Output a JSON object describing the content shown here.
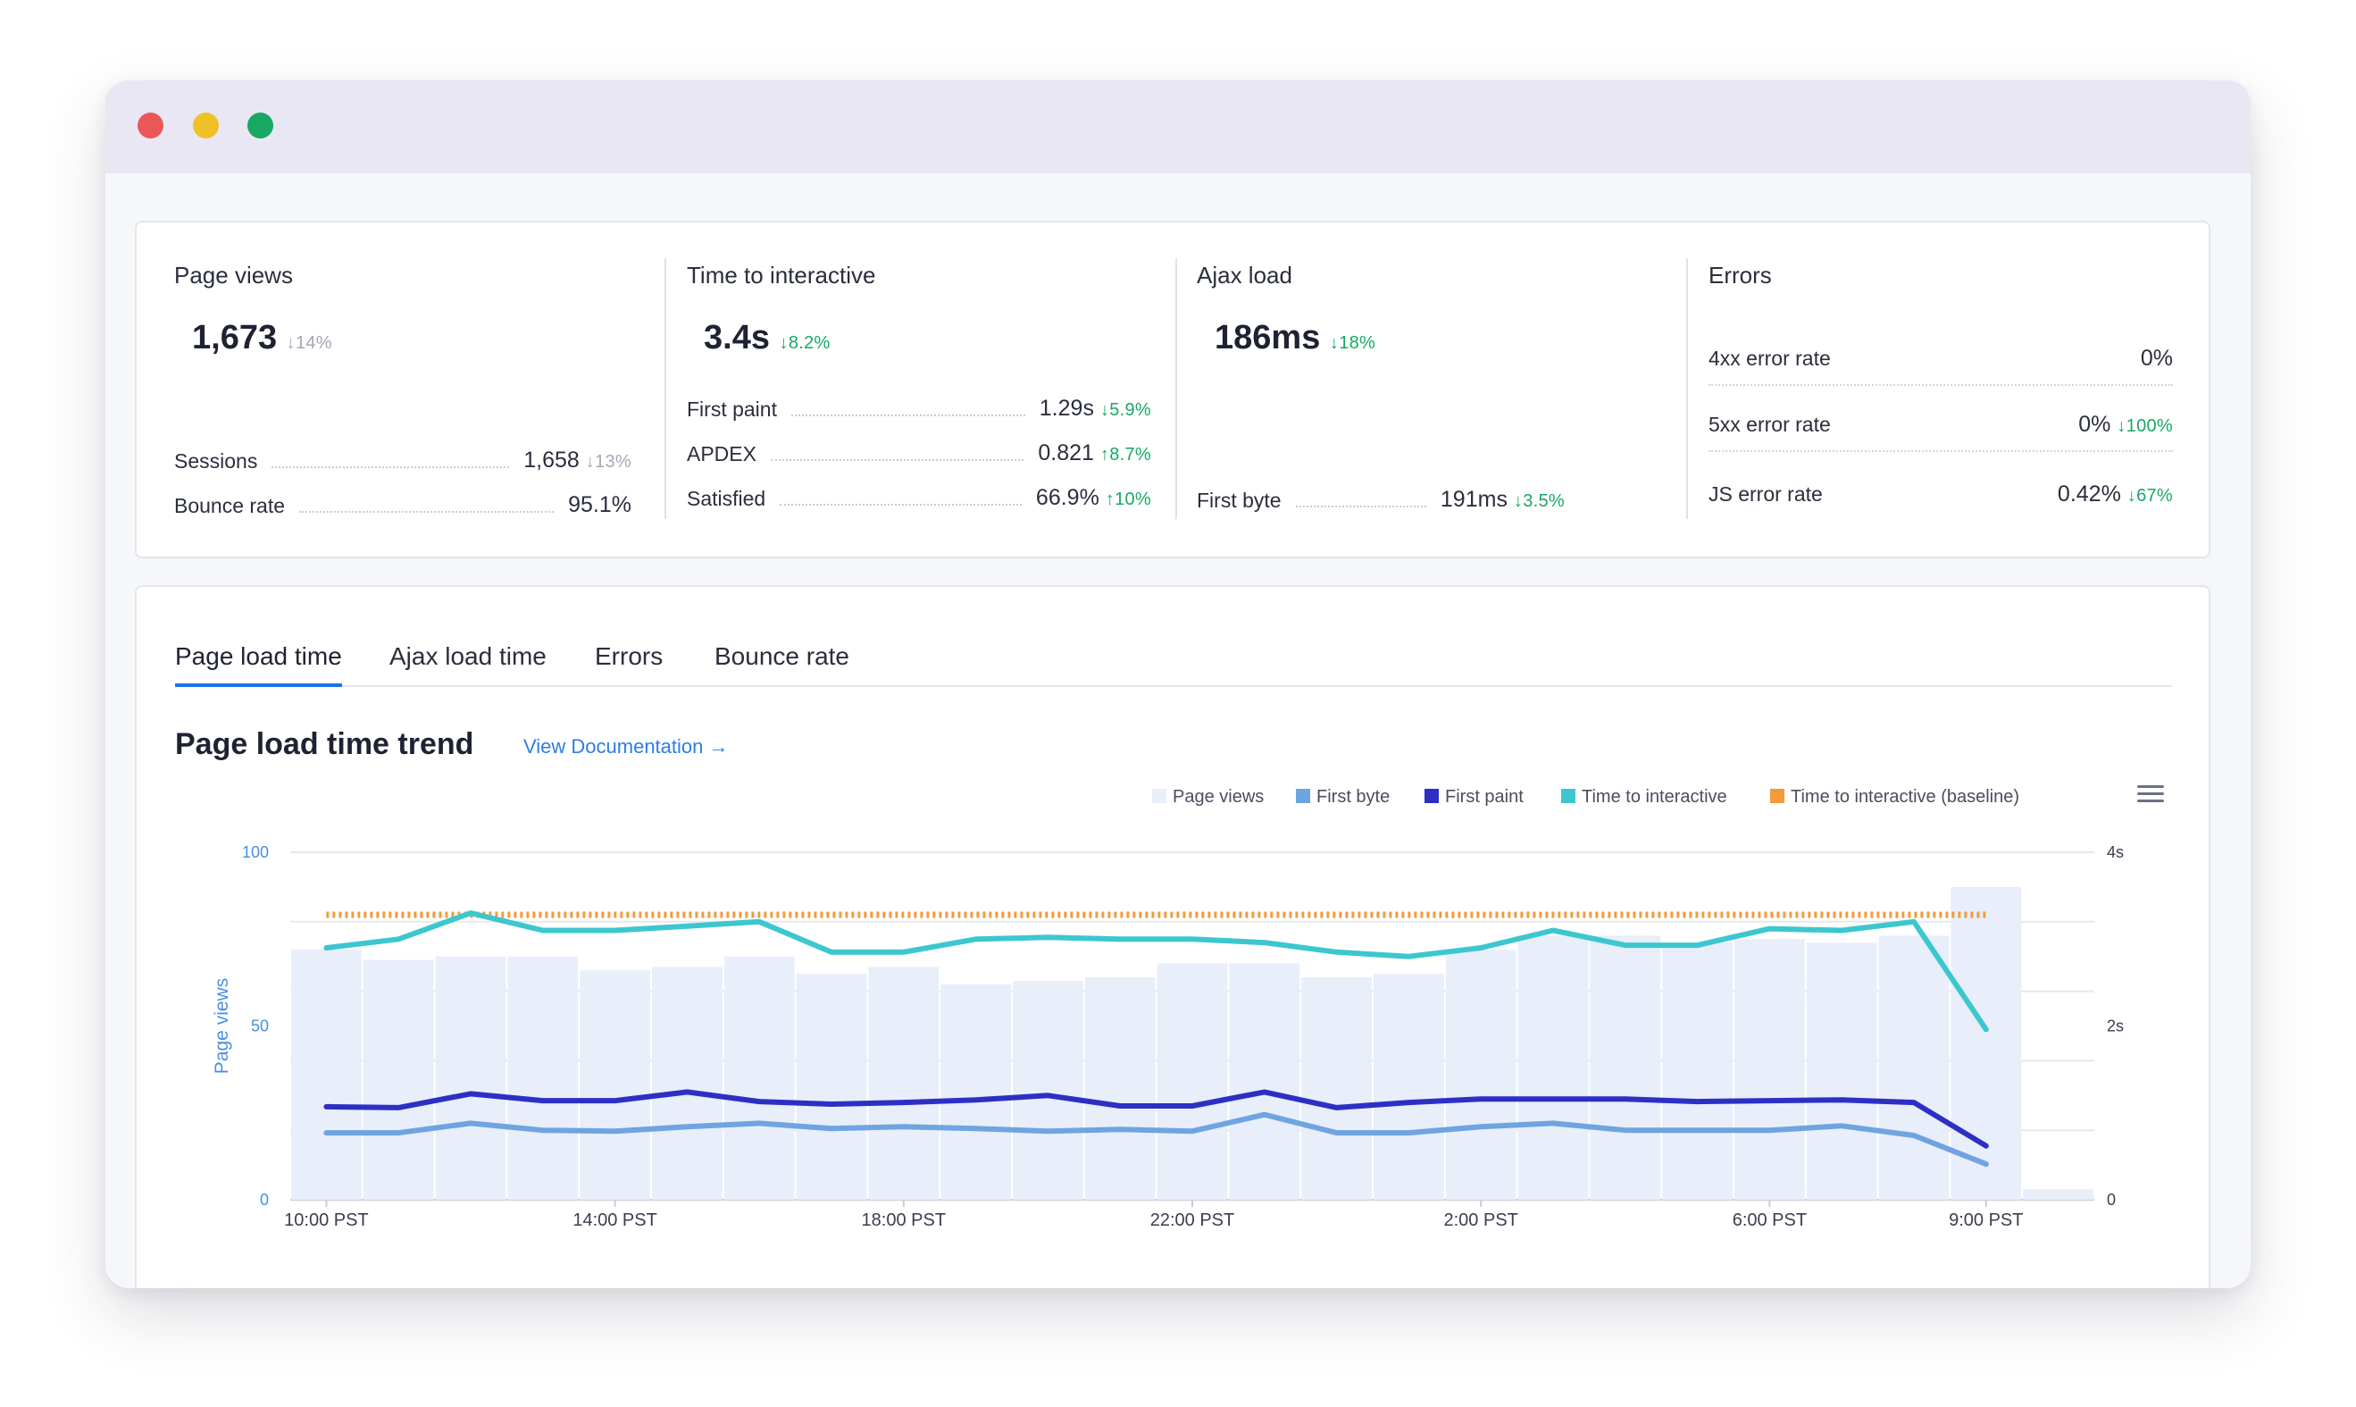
{
  "window": {
    "controls": [
      "close",
      "minimize",
      "maximize"
    ]
  },
  "kpis": {
    "page_views": {
      "title": "Page views",
      "value": "1,673",
      "delta": "↓14%",
      "rows": [
        {
          "label": "Sessions",
          "value": "1,658",
          "delta": "↓13%"
        },
        {
          "label": "Bounce rate",
          "value": "95.1%",
          "delta": ""
        }
      ]
    },
    "time_to_interactive": {
      "title": "Time to interactive",
      "value": "3.4s",
      "delta": "↓8.2%",
      "rows": [
        {
          "label": "First paint",
          "value": "1.29s",
          "delta": "↓5.9%"
        },
        {
          "label": "APDEX",
          "value": "0.821",
          "delta": "↑8.7%"
        },
        {
          "label": "Satisfied",
          "value": "66.9%",
          "delta": "↑10%"
        }
      ]
    },
    "ajax_load": {
      "title": "Ajax load",
      "value": "186ms",
      "delta": "↓18%",
      "rows": [
        {
          "label": "First byte",
          "value": "191ms",
          "delta": "↓3.5%"
        }
      ]
    },
    "errors": {
      "title": "Errors",
      "rows": [
        {
          "label": "4xx error rate",
          "value": "0%",
          "delta": ""
        },
        {
          "label": "5xx error rate",
          "value": "0%",
          "delta": "↓100%"
        },
        {
          "label": "JS error rate",
          "value": "0.42%",
          "delta": "↓67%"
        }
      ]
    }
  },
  "tabs": [
    "Page load time",
    "Ajax load time",
    "Errors",
    "Bounce rate"
  ],
  "active_tab": "Page load time",
  "section": {
    "title": "Page load time trend",
    "link": "View Documentation →"
  },
  "colors": {
    "page_views": "#e8eefa",
    "first_byte": "#6ea4e0",
    "first_paint": "#2d2fc4",
    "time_to_interactive": "#3cc7cf",
    "tti_baseline": "#f39a3c",
    "link": "#2f7de1",
    "green": "#17a864"
  },
  "chart_data": {
    "type": "line",
    "legend_position": "top-right",
    "ylabel": "Page views",
    "y_left": {
      "ticks": [
        "100",
        "50",
        "0"
      ],
      "range": [
        0,
        100
      ]
    },
    "y_right": {
      "ticks": [
        "4s",
        "2s",
        "0"
      ],
      "range": [
        0,
        4
      ]
    },
    "x_ticks": [
      "10:00 PST",
      "14:00 PST",
      "18:00 PST",
      "22:00 PST",
      "2:00 PST",
      "6:00 PST",
      "9:00 PST"
    ],
    "legend": [
      "Page views",
      "First byte",
      "First paint",
      "Time to interactive",
      "Time to interactive (baseline)"
    ],
    "series": [
      {
        "name": "Page views",
        "kind": "bar",
        "axis": "left",
        "values": [
          72,
          69,
          70,
          70,
          66,
          67,
          70,
          65,
          67,
          62,
          63,
          64,
          68,
          68,
          64,
          65,
          72,
          76,
          76,
          74,
          75,
          74,
          76,
          90,
          3
        ]
      },
      {
        "name": "Time to interactive (baseline)",
        "kind": "dashed",
        "axis": "right",
        "values": [
          3.28,
          3.28,
          3.28,
          3.28,
          3.28,
          3.28,
          3.28,
          3.28,
          3.28,
          3.28,
          3.28,
          3.28,
          3.28,
          3.28,
          3.28,
          3.28,
          3.28,
          3.28,
          3.28,
          3.28,
          3.28,
          3.28,
          3.28,
          3.28
        ]
      },
      {
        "name": "Time to interactive",
        "kind": "line",
        "axis": "right",
        "values": [
          2.9,
          3.0,
          3.3,
          3.1,
          3.1,
          3.15,
          3.2,
          2.85,
          2.85,
          3.0,
          3.02,
          3.0,
          3.0,
          2.96,
          2.85,
          2.8,
          2.9,
          3.1,
          2.93,
          2.93,
          3.12,
          3.1,
          3.2,
          1.96
        ]
      },
      {
        "name": "First paint",
        "kind": "line",
        "axis": "right",
        "values": [
          1.07,
          1.06,
          1.22,
          1.14,
          1.14,
          1.24,
          1.13,
          1.1,
          1.12,
          1.15,
          1.2,
          1.08,
          1.08,
          1.24,
          1.06,
          1.12,
          1.16,
          1.16,
          1.16,
          1.13,
          1.14,
          1.15,
          1.12,
          0.62
        ]
      },
      {
        "name": "First byte",
        "kind": "line",
        "axis": "right",
        "values": [
          0.77,
          0.77,
          0.88,
          0.8,
          0.79,
          0.84,
          0.88,
          0.82,
          0.84,
          0.82,
          0.79,
          0.81,
          0.79,
          0.98,
          0.77,
          0.77,
          0.84,
          0.88,
          0.8,
          0.8,
          0.8,
          0.85,
          0.74,
          0.41
        ]
      }
    ]
  }
}
